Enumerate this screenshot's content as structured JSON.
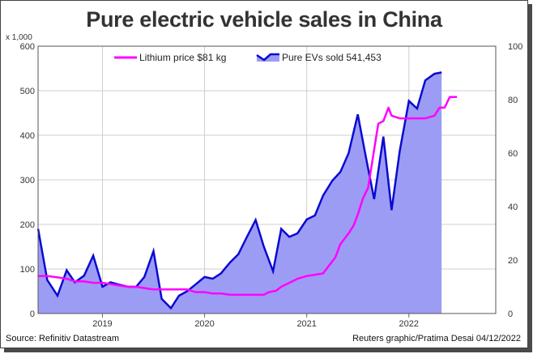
{
  "title": "Pure electric vehicle sales in China",
  "footer": {
    "source": "Source: Refinitiv Datastream",
    "credit": "Reuters graphic/Pratima Desai 04/12/2022"
  },
  "colors": {
    "ev_line": "#0a0ad2",
    "ev_fill": "#9d9cf5",
    "lithium": "#ff00ff",
    "grid": "#cfcfcf",
    "axis_text": "#333333"
  },
  "chart_data": {
    "type": "area",
    "title": "Pure electric vehicle sales in China",
    "x_tick_labels": [
      "2019",
      "2020",
      "2021",
      "2022"
    ],
    "x_range": [
      2018.37,
      2022.85
    ],
    "x_tick_positions": [
      2019.0,
      2020.0,
      2021.0,
      2022.0
    ],
    "left_axis": {
      "unit_label": "x 1,000",
      "ylim": [
        0,
        600
      ],
      "ticks": [
        0,
        100,
        200,
        300,
        400,
        500,
        600
      ]
    },
    "right_axis": {
      "ylim": [
        0,
        100
      ],
      "ticks": [
        0,
        20,
        40,
        60,
        80,
        100
      ]
    },
    "grid": true,
    "legend_position": "top",
    "series": [
      {
        "name": "Pure EVs sold 541,453",
        "axis": "left",
        "style": "area-line",
        "points": [
          [
            2018.37,
            190
          ],
          [
            2018.46,
            75
          ],
          [
            2018.56,
            40
          ],
          [
            2018.65,
            97
          ],
          [
            2018.73,
            70
          ],
          [
            2018.82,
            85
          ],
          [
            2018.91,
            130
          ],
          [
            2019.0,
            60
          ],
          [
            2019.08,
            70
          ],
          [
            2019.16,
            65
          ],
          [
            2019.25,
            60
          ],
          [
            2019.33,
            60
          ],
          [
            2019.41,
            82
          ],
          [
            2019.5,
            140
          ],
          [
            2019.58,
            33
          ],
          [
            2019.67,
            12
          ],
          [
            2019.75,
            40
          ],
          [
            2019.83,
            50
          ],
          [
            2019.91,
            65
          ],
          [
            2020.0,
            82
          ],
          [
            2020.08,
            78
          ],
          [
            2020.16,
            90
          ],
          [
            2020.25,
            115
          ],
          [
            2020.33,
            133
          ],
          [
            2020.41,
            170
          ],
          [
            2020.5,
            210
          ],
          [
            2020.58,
            150
          ],
          [
            2020.67,
            95
          ],
          [
            2020.75,
            190
          ],
          [
            2020.83,
            172
          ],
          [
            2020.91,
            180
          ],
          [
            2021.0,
            211
          ],
          [
            2021.08,
            220
          ],
          [
            2021.16,
            265
          ],
          [
            2021.25,
            298
          ],
          [
            2021.33,
            318
          ],
          [
            2021.41,
            360
          ],
          [
            2021.5,
            447
          ],
          [
            2021.58,
            350
          ],
          [
            2021.66,
            257
          ],
          [
            2021.75,
            397
          ],
          [
            2021.83,
            232
          ],
          [
            2021.91,
            365
          ],
          [
            2022.0,
            477
          ],
          [
            2022.08,
            460
          ],
          [
            2022.16,
            523
          ],
          [
            2022.25,
            538
          ],
          [
            2022.32,
            541
          ]
        ]
      },
      {
        "name": "Lithium price $81 kg",
        "axis": "right",
        "style": "line",
        "points": [
          [
            2018.37,
            14
          ],
          [
            2018.46,
            14
          ],
          [
            2018.56,
            13.5
          ],
          [
            2018.65,
            13
          ],
          [
            2018.73,
            12
          ],
          [
            2018.82,
            12
          ],
          [
            2018.91,
            11.5
          ],
          [
            2019.0,
            11.5
          ],
          [
            2019.08,
            11
          ],
          [
            2019.16,
            10.5
          ],
          [
            2019.25,
            10
          ],
          [
            2019.33,
            10
          ],
          [
            2019.41,
            9.5
          ],
          [
            2019.5,
            9
          ],
          [
            2019.58,
            9
          ],
          [
            2019.67,
            9
          ],
          [
            2019.75,
            9
          ],
          [
            2019.83,
            9
          ],
          [
            2019.91,
            8
          ],
          [
            2020.0,
            8
          ],
          [
            2020.08,
            7.5
          ],
          [
            2020.16,
            7.5
          ],
          [
            2020.25,
            7
          ],
          [
            2020.33,
            7
          ],
          [
            2020.41,
            7
          ],
          [
            2020.5,
            7
          ],
          [
            2020.58,
            7
          ],
          [
            2020.63,
            8
          ],
          [
            2020.7,
            8.5
          ],
          [
            2020.75,
            10
          ],
          [
            2020.83,
            11.5
          ],
          [
            2020.91,
            13
          ],
          [
            2021.0,
            14
          ],
          [
            2021.08,
            14.5
          ],
          [
            2021.16,
            15
          ],
          [
            2021.22,
            18
          ],
          [
            2021.28,
            21
          ],
          [
            2021.33,
            26
          ],
          [
            2021.41,
            30
          ],
          [
            2021.46,
            33
          ],
          [
            2021.5,
            37
          ],
          [
            2021.55,
            43
          ],
          [
            2021.6,
            47
          ],
          [
            2021.65,
            59
          ],
          [
            2021.7,
            71
          ],
          [
            2021.75,
            72
          ],
          [
            2021.8,
            77
          ],
          [
            2021.83,
            74
          ],
          [
            2021.91,
            73
          ],
          [
            2022.0,
            73
          ],
          [
            2022.08,
            73
          ],
          [
            2022.16,
            73
          ],
          [
            2022.25,
            74
          ],
          [
            2022.3,
            77
          ],
          [
            2022.35,
            77
          ],
          [
            2022.4,
            81
          ],
          [
            2022.47,
            81
          ]
        ]
      }
    ]
  }
}
